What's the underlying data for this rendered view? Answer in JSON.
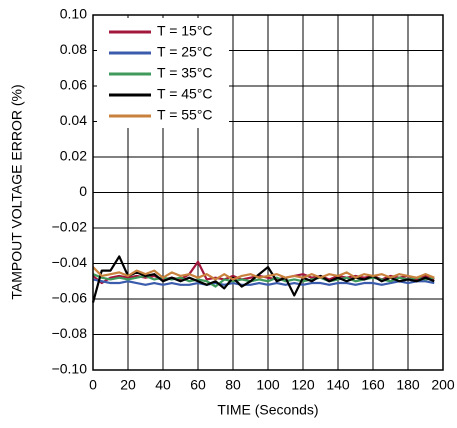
{
  "chart_data": {
    "type": "line",
    "xlabel": "TIME (Seconds)",
    "ylabel": "TAMPOUT VOLTAGE ERROR (%)",
    "x": [
      0,
      5,
      10,
      15,
      20,
      25,
      30,
      35,
      40,
      45,
      50,
      55,
      60,
      65,
      70,
      75,
      80,
      85,
      90,
      95,
      100,
      105,
      110,
      115,
      120,
      125,
      130,
      135,
      140,
      145,
      150,
      155,
      160,
      165,
      170,
      175,
      180,
      185,
      190,
      195
    ],
    "series": [
      {
        "name": "T = 15°C",
        "color": "#a3173c",
        "values": [
          -0.047,
          -0.051,
          -0.048,
          -0.047,
          -0.048,
          -0.047,
          -0.048,
          -0.047,
          -0.049,
          -0.048,
          -0.049,
          -0.046,
          -0.039,
          -0.049,
          -0.048,
          -0.049,
          -0.047,
          -0.049,
          -0.048,
          -0.047,
          -0.048,
          -0.049,
          -0.048,
          -0.047,
          -0.046,
          -0.048,
          -0.047,
          -0.049,
          -0.047,
          -0.048,
          -0.047,
          -0.048,
          -0.047,
          -0.049,
          -0.047,
          -0.048,
          -0.047,
          -0.049,
          -0.047,
          -0.049
        ]
      },
      {
        "name": "T = 25°C",
        "color": "#3b5cad",
        "values": [
          -0.049,
          -0.05,
          -0.051,
          -0.051,
          -0.05,
          -0.051,
          -0.052,
          -0.051,
          -0.052,
          -0.051,
          -0.052,
          -0.052,
          -0.051,
          -0.052,
          -0.051,
          -0.052,
          -0.051,
          -0.052,
          -0.052,
          -0.051,
          -0.052,
          -0.051,
          -0.052,
          -0.051,
          -0.052,
          -0.051,
          -0.051,
          -0.052,
          -0.051,
          -0.051,
          -0.052,
          -0.051,
          -0.051,
          -0.052,
          -0.051,
          -0.05,
          -0.051,
          -0.05,
          -0.05,
          -0.051
        ]
      },
      {
        "name": "T = 35°C",
        "color": "#3f9a5b",
        "values": [
          -0.046,
          -0.048,
          -0.049,
          -0.048,
          -0.049,
          -0.048,
          -0.047,
          -0.049,
          -0.048,
          -0.049,
          -0.048,
          -0.05,
          -0.049,
          -0.05,
          -0.053,
          -0.049,
          -0.05,
          -0.049,
          -0.05,
          -0.049,
          -0.05,
          -0.048,
          -0.05,
          -0.049,
          -0.05,
          -0.049,
          -0.048,
          -0.05,
          -0.049,
          -0.048,
          -0.05,
          -0.049,
          -0.048,
          -0.049,
          -0.05,
          -0.048,
          -0.049,
          -0.048,
          -0.049,
          -0.048
        ]
      },
      {
        "name": "T = 45°C",
        "color": "#000000",
        "values": [
          -0.062,
          -0.044,
          -0.044,
          -0.036,
          -0.047,
          -0.045,
          -0.047,
          -0.046,
          -0.05,
          -0.048,
          -0.05,
          -0.048,
          -0.05,
          -0.052,
          -0.05,
          -0.054,
          -0.048,
          -0.053,
          -0.05,
          -0.046,
          -0.042,
          -0.05,
          -0.048,
          -0.058,
          -0.048,
          -0.05,
          -0.047,
          -0.05,
          -0.048,
          -0.05,
          -0.048,
          -0.049,
          -0.047,
          -0.05,
          -0.048,
          -0.05,
          -0.049,
          -0.05,
          -0.048,
          -0.05
        ]
      },
      {
        "name": "T = 55°C",
        "color": "#c9823d",
        "values": [
          -0.042,
          -0.047,
          -0.046,
          -0.045,
          -0.047,
          -0.044,
          -0.046,
          -0.044,
          -0.048,
          -0.045,
          -0.047,
          -0.046,
          -0.048,
          -0.046,
          -0.049,
          -0.046,
          -0.049,
          -0.047,
          -0.046,
          -0.048,
          -0.047,
          -0.046,
          -0.048,
          -0.047,
          -0.048,
          -0.046,
          -0.048,
          -0.046,
          -0.047,
          -0.045,
          -0.048,
          -0.046,
          -0.047,
          -0.046,
          -0.048,
          -0.046,
          -0.047,
          -0.048,
          -0.046,
          -0.048
        ]
      }
    ],
    "xlim": [
      0,
      200
    ],
    "xticks": [
      0,
      20,
      40,
      60,
      80,
      100,
      120,
      140,
      160,
      180,
      200
    ],
    "ylim": [
      -0.1,
      0.1
    ],
    "yticks": [
      {
        "value": 0.1,
        "label": "0.10"
      },
      0.08,
      0.06,
      0.04,
      0.02,
      0,
      {
        "value": -0.02,
        "label": "−0.02"
      },
      {
        "value": -0.04,
        "label": "−0.04"
      },
      {
        "value": -0.06,
        "label": "−0.06"
      },
      {
        "value": -0.08,
        "label": "−0.08"
      },
      {
        "value": -0.1,
        "label": "−0.10"
      }
    ],
    "grid": true,
    "legend": "upper left"
  }
}
